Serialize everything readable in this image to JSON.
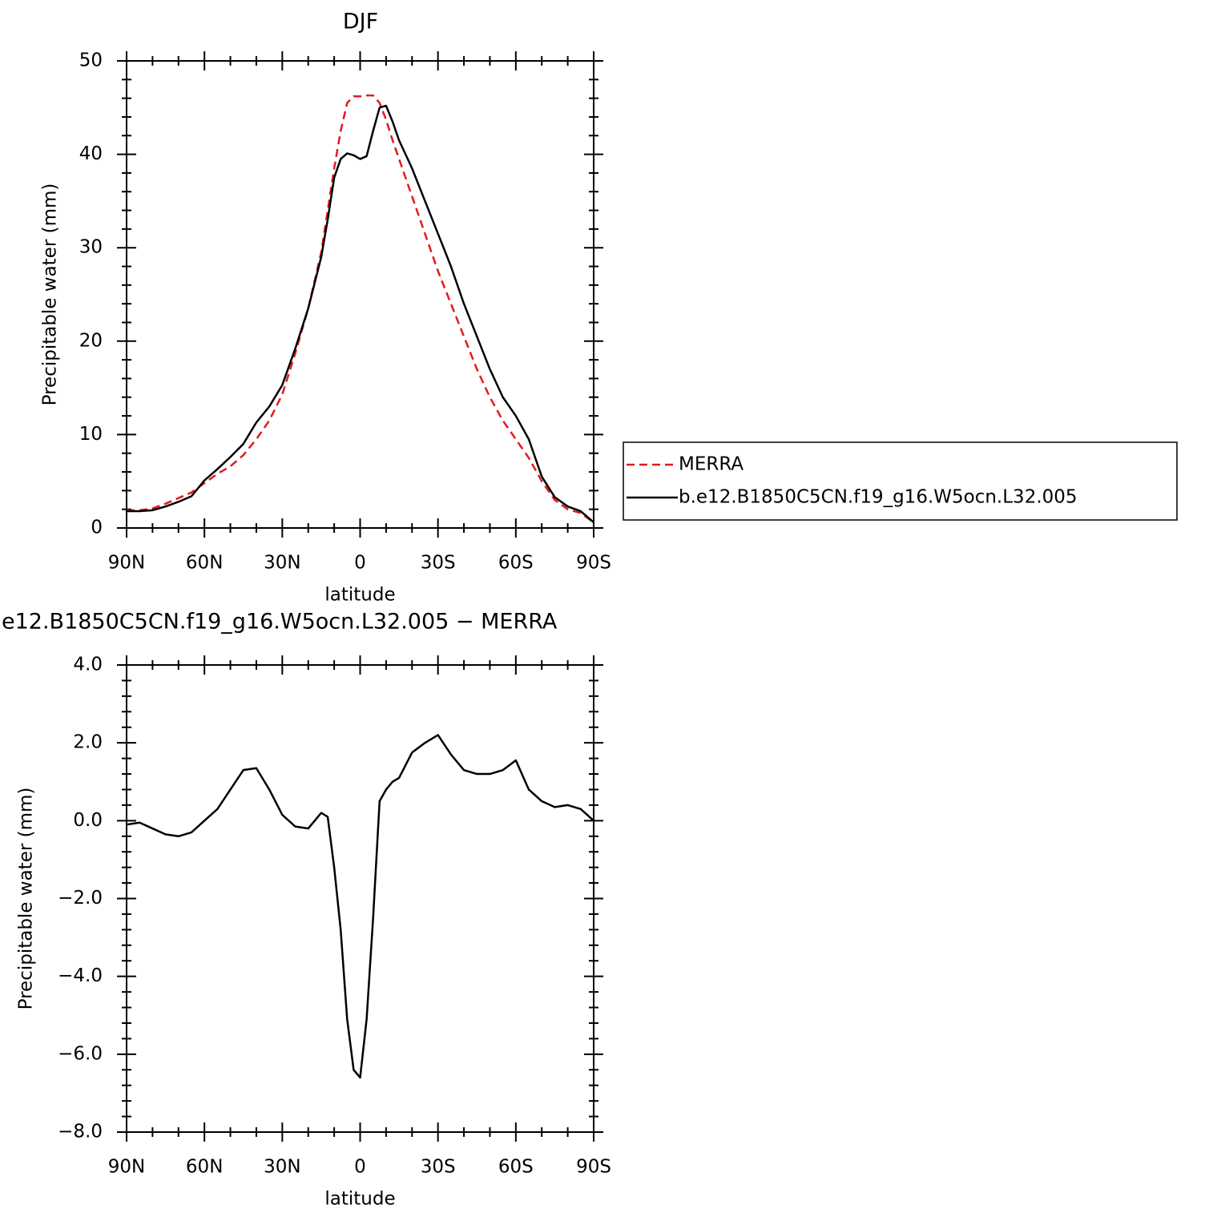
{
  "chart_data": [
    {
      "type": "line",
      "title": "DJF",
      "xlabel": "latitude",
      "ylabel": "Precipitable water (mm)",
      "x": [
        90,
        85,
        80,
        75,
        70,
        65,
        60,
        55,
        50,
        45,
        40,
        35,
        30,
        25,
        20,
        15,
        12.5,
        10,
        7.5,
        5,
        2.5,
        0,
        -2.5,
        -5,
        -7.5,
        -10,
        -12.5,
        -15,
        -20,
        -25,
        -30,
        -35,
        -40,
        -45,
        -50,
        -55,
        -60,
        -65,
        -70,
        -75,
        -80,
        -85,
        -90
      ],
      "series": [
        {
          "name": "MERRA",
          "color": "#e41a1c",
          "dash": true,
          "values": [
            1.9,
            1.9,
            2.1,
            2.6,
            3.2,
            3.8,
            4.8,
            5.8,
            6.6,
            7.8,
            9.5,
            11.5,
            14.3,
            18.7,
            23.5,
            29.5,
            34,
            38.5,
            42.5,
            45.5,
            46.2,
            46.2,
            46.3,
            46.3,
            45.5,
            43.7,
            41.5,
            39.5,
            35.5,
            31.5,
            27.5,
            24,
            20.5,
            17,
            14,
            11.5,
            9.5,
            7.5,
            5,
            3,
            2,
            1.6,
            0.6
          ]
        },
        {
          "name": "b.e12.B1850C5CN.f19_g16.W5ocn.L32.005",
          "color": "#000000",
          "dash": false,
          "values": [
            1.8,
            1.8,
            1.9,
            2.3,
            2.8,
            3.4,
            5.1,
            6.3,
            7.6,
            9.0,
            11.3,
            13.0,
            15.3,
            19.2,
            23.5,
            29,
            33,
            37.5,
            39.5,
            40.1,
            39.9,
            39.5,
            39.8,
            42.5,
            45,
            45.2,
            43.5,
            41.5,
            38.5,
            35,
            31.5,
            28,
            24,
            20.5,
            17,
            14,
            12,
            9.5,
            5.5,
            3.3,
            2.3,
            1.8,
            0.6
          ]
        }
      ],
      "xlim": [
        90,
        -90
      ],
      "xticks": [
        {
          "value": 90,
          "label": "90N"
        },
        {
          "value": 60,
          "label": "60N"
        },
        {
          "value": 30,
          "label": "30N"
        },
        0,
        {
          "value": -30,
          "label": "30S"
        },
        {
          "value": -60,
          "label": "60S"
        },
        {
          "value": -90,
          "label": "90S"
        }
      ],
      "xminorticks": [
        80,
        70,
        50,
        40,
        20,
        10,
        -10,
        -20,
        -40,
        -50,
        -70,
        -80
      ],
      "ylim": [
        0,
        50
      ],
      "yticks": [
        0,
        10,
        20,
        30,
        40,
        50
      ],
      "yminorticks": [
        2,
        4,
        6,
        8,
        12,
        14,
        16,
        18,
        22,
        24,
        26,
        28,
        32,
        34,
        36,
        38,
        42,
        44,
        46,
        48
      ],
      "legend": "right"
    },
    {
      "type": "line",
      "title": "e12.B1850C5CN.f19_g16.W5ocn.L32.005 − MERRA",
      "xlabel": "latitude",
      "ylabel": "Precipitable water (mm)",
      "x": [
        90,
        85,
        80,
        75,
        70,
        65,
        60,
        55,
        50,
        45,
        40,
        35,
        30,
        25,
        20,
        15,
        12.5,
        10,
        7.5,
        5,
        2.5,
        0,
        -2.5,
        -5,
        -7.5,
        -10,
        -12.5,
        -15,
        -20,
        -25,
        -30,
        -35,
        -40,
        -45,
        -50,
        -55,
        -60,
        -65,
        -70,
        -75,
        -80,
        -85,
        -90
      ],
      "series": [
        {
          "color": "#000000",
          "dash": false,
          "values": [
            -0.1,
            -0.05,
            -0.2,
            -0.35,
            -0.4,
            -0.3,
            0.0,
            0.3,
            0.8,
            1.3,
            1.35,
            0.8,
            0.15,
            -0.15,
            -0.2,
            0.2,
            0.1,
            -1.2,
            -2.8,
            -5.1,
            -6.4,
            -6.6,
            -5.1,
            -2.5,
            0.5,
            0.8,
            1.0,
            1.1,
            1.75,
            2.0,
            2.2,
            1.7,
            1.3,
            1.2,
            1.2,
            1.3,
            1.55,
            0.8,
            0.5,
            0.35,
            0.4,
            0.3,
            0.0
          ]
        }
      ],
      "xlim": [
        90,
        -90
      ],
      "xticks": [
        {
          "value": 90,
          "label": "90N"
        },
        {
          "value": 60,
          "label": "60N"
        },
        {
          "value": 30,
          "label": "30N"
        },
        0,
        {
          "value": -30,
          "label": "30S"
        },
        {
          "value": -60,
          "label": "60S"
        },
        {
          "value": -90,
          "label": "90S"
        }
      ],
      "xminorticks": [
        80,
        70,
        50,
        40,
        20,
        10,
        -10,
        -20,
        -40,
        -50,
        -70,
        -80
      ],
      "ylim": [
        -8,
        4
      ],
      "yticks": [
        {
          "value": 4,
          "label": "4.0"
        },
        {
          "value": 2,
          "label": "2.0"
        },
        {
          "value": 0,
          "label": "0.0"
        },
        {
          "value": -2,
          "label": "−2.0"
        },
        {
          "value": -4,
          "label": "−4.0"
        },
        {
          "value": -6,
          "label": "−6.0"
        },
        {
          "value": -8,
          "label": "−8.0"
        }
      ],
      "yminorticks": [
        3.6,
        3.2,
        2.8,
        2.4,
        1.6,
        1.2,
        0.8,
        0.4,
        -0.4,
        -0.8,
        -1.2,
        -1.6,
        -2.4,
        -2.8,
        -3.2,
        -3.6,
        -4.4,
        -4.8,
        -5.2,
        -5.6,
        -6.4,
        -6.8,
        -7.2,
        -7.6
      ]
    }
  ]
}
